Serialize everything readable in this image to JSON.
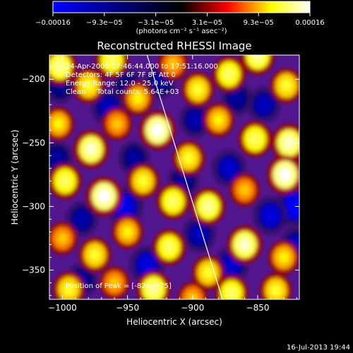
{
  "chart_data": {
    "type": "heatmap",
    "title": "Reconstructed RHESSI Image",
    "xlabel": "Heliocentric X (arcsec)",
    "ylabel": "Heliocentric Y (arcsec)",
    "x_range": [
      -1010,
      -818
    ],
    "y_range": [
      -373,
      -181
    ],
    "x_ticks": [
      -1000,
      -950,
      -900,
      -850
    ],
    "y_ticks": [
      -200,
      -250,
      -300,
      -350
    ],
    "x_tick_labels": [
      "−1000",
      "−950",
      "−900",
      "−850"
    ],
    "y_tick_labels": [
      "−200",
      "−250",
      "−300",
      "−350"
    ],
    "colorbar": {
      "range": [
        -0.00016,
        0.00016
      ],
      "tick_labels": [
        "−0.00016",
        "−9.3e−05",
        "−3.1e−05",
        "3.1e−05",
        "9.3e−05",
        "0.00016"
      ],
      "units_label": "(photons cm⁻² s⁻¹ asec⁻²)",
      "colors": [
        "#0000ff",
        "#000000",
        "#ff0000",
        "#ffff00",
        "#ffffff"
      ]
    },
    "annotations": [
      "24-Apr-2006 17:46:44.000 to 17:51:16.000",
      "Detectors: 4F 5F 6F 7F 8F  Att 0",
      "Energy Range: 12.0 - 25.0 keV",
      "Clean     Total counts: 5.64E+03"
    ],
    "peak_label": "Position of Peak = [-829,-275]",
    "peak_position": [
      -829,
      -275
    ],
    "limb_line": {
      "x": [
        -935,
        -877
      ],
      "y": [
        -181,
        -373
      ]
    },
    "blobs": [
      {
        "x": -1002,
        "y": -190,
        "v": 0.00014
      },
      {
        "x": -980,
        "y": -205,
        "v": 0.00012
      },
      {
        "x": -962,
        "y": -185,
        "v": 0.00013
      },
      {
        "x": -942,
        "y": -215,
        "v": 0.00011
      },
      {
        "x": -915,
        "y": -188,
        "v": 0.0001
      },
      {
        "x": -896,
        "y": -208,
        "v": 0.00012
      },
      {
        "x": -872,
        "y": -196,
        "v": 0.00013
      },
      {
        "x": -850,
        "y": -182,
        "v": 0.00014
      },
      {
        "x": -828,
        "y": -205,
        "v": 0.00012
      },
      {
        "x": -1003,
        "y": -235,
        "v": 0.00011
      },
      {
        "x": -978,
        "y": -255,
        "v": 0.00015
      },
      {
        "x": -958,
        "y": -235,
        "v": 0.0001
      },
      {
        "x": -927,
        "y": -240,
        "v": 0.00016
      },
      {
        "x": -903,
        "y": -262,
        "v": 0.00012
      },
      {
        "x": -880,
        "y": -232,
        "v": 0.00011
      },
      {
        "x": -852,
        "y": -247,
        "v": 0.00013
      },
      {
        "x": -826,
        "y": -250,
        "v": 0.00015
      },
      {
        "x": -998,
        "y": -280,
        "v": 0.00013
      },
      {
        "x": -968,
        "y": -292,
        "v": 0.00016
      },
      {
        "x": -938,
        "y": -280,
        "v": 0.00012
      },
      {
        "x": -915,
        "y": -296,
        "v": 0.00013
      },
      {
        "x": -888,
        "y": -300,
        "v": 0.00014
      },
      {
        "x": -860,
        "y": -287,
        "v": 0.0001
      },
      {
        "x": -829,
        "y": -275,
        "v": 0.00016
      },
      {
        "x": -1000,
        "y": -325,
        "v": 0.0001
      },
      {
        "x": -975,
        "y": -338,
        "v": 0.00012
      },
      {
        "x": -950,
        "y": -320,
        "v": 0.00011
      },
      {
        "x": -918,
        "y": -332,
        "v": 0.00013
      },
      {
        "x": -888,
        "y": -352,
        "v": 0.00012
      },
      {
        "x": -860,
        "y": -330,
        "v": 0.00015
      },
      {
        "x": -830,
        "y": -340,
        "v": 0.00011
      },
      {
        "x": -995,
        "y": -365,
        "v": 0.00012
      },
      {
        "x": -960,
        "y": -360,
        "v": 0.0001
      },
      {
        "x": -930,
        "y": -365,
        "v": 0.00014
      },
      {
        "x": -900,
        "y": -372,
        "v": 0.0001
      },
      {
        "x": -870,
        "y": -368,
        "v": 0.00013
      },
      {
        "x": -836,
        "y": -366,
        "v": 0.00012
      },
      {
        "x": -965,
        "y": -222,
        "v": -0.00012
      },
      {
        "x": -1004,
        "y": -262,
        "v": -0.0001
      },
      {
        "x": -945,
        "y": -262,
        "v": -0.0001
      },
      {
        "x": -898,
        "y": -232,
        "v": -0.00011
      },
      {
        "x": -872,
        "y": -270,
        "v": -0.00013
      },
      {
        "x": -845,
        "y": -220,
        "v": -0.00012
      },
      {
        "x": -840,
        "y": -307,
        "v": -0.00014
      },
      {
        "x": -985,
        "y": -310,
        "v": -0.00011
      },
      {
        "x": -952,
        "y": -300,
        "v": -0.00015
      },
      {
        "x": -907,
        "y": -280,
        "v": -0.0001
      },
      {
        "x": -935,
        "y": -346,
        "v": -0.00014
      },
      {
        "x": -895,
        "y": -322,
        "v": -0.00012
      },
      {
        "x": -870,
        "y": -346,
        "v": -0.00013
      },
      {
        "x": -822,
        "y": -300,
        "v": -0.00016
      },
      {
        "x": -985,
        "y": -358,
        "v": -0.0001
      },
      {
        "x": -1002,
        "y": -206,
        "v": -9e-05
      },
      {
        "x": -925,
        "y": -202,
        "v": -0.0001
      },
      {
        "x": -866,
        "y": -215,
        "v": -0.0001
      },
      {
        "x": -820,
        "y": -330,
        "v": -0.00012
      },
      {
        "x": -950,
        "y": -205,
        "v": -9e-05
      }
    ]
  },
  "footer": {
    "timestamp": "16-Jul-2013 19:44"
  }
}
